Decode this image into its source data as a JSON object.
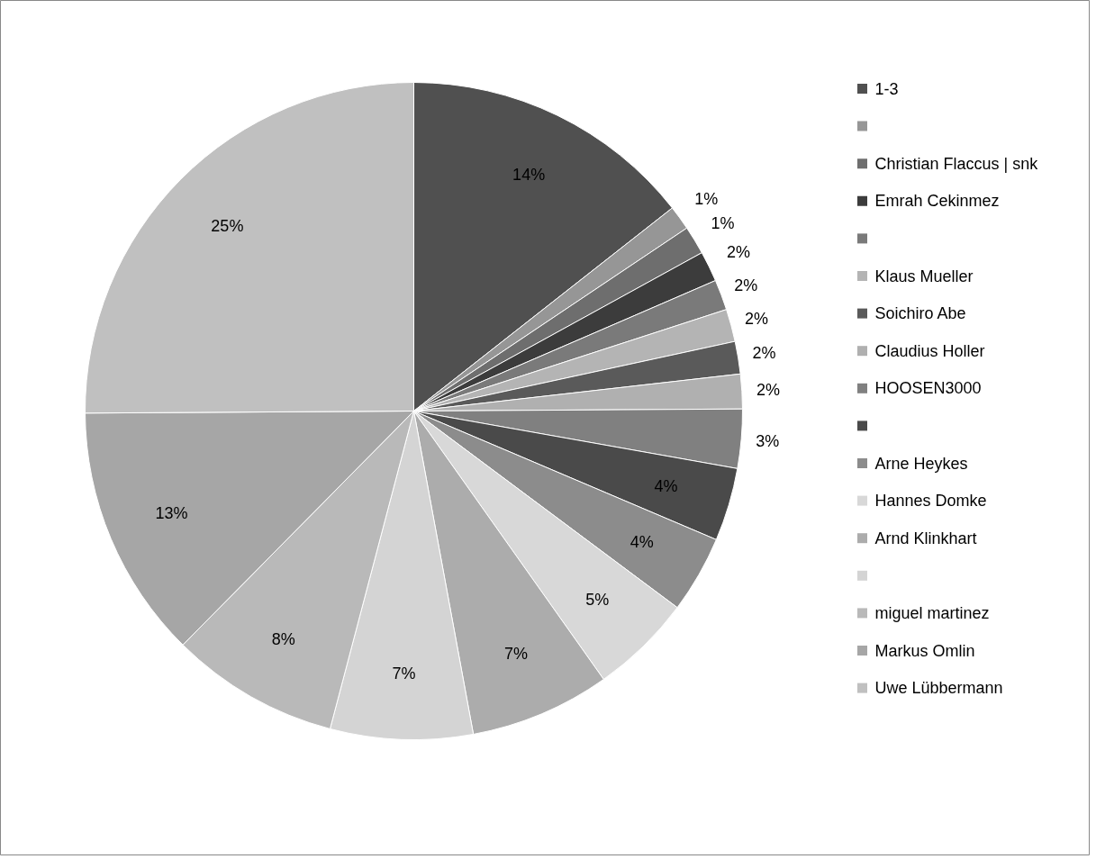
{
  "chart_data": {
    "type": "pie",
    "categories": [
      "1-3",
      null,
      "Christian Flaccus | snk",
      "Emrah Cekinmez",
      null,
      "Klaus Mueller",
      "Soichiro Abe",
      "Claudius Holler",
      "HOOSEN3000",
      null,
      "Arne Heykes",
      "Hannes Domke",
      "Arnd Klinkhart",
      null,
      "miguel martinez",
      "Markus Omlin",
      "Uwe Lübbermann"
    ],
    "values": [
      14.4,
      1.2,
      1.4,
      1.5,
      1.5,
      1.6,
      1.6,
      1.7,
      2.9,
      3.6,
      3.8,
      5.0,
      6.9,
      7.0,
      8.3,
      12.5,
      25.1
    ],
    "value_labels": [
      "14%",
      "1%",
      "1%",
      "2%",
      "2%",
      "2%",
      "2%",
      "2%",
      "3%",
      "4%",
      "4%",
      "5%",
      "7%",
      "7%",
      "8%",
      "13%",
      "25%"
    ],
    "colors": [
      "#505050",
      "#969696",
      "#6e6e6e",
      "#3c3c3c",
      "#7a7a7a",
      "#b4b4b4",
      "#5a5a5a",
      "#b0b0b0",
      "#808080",
      "#4a4a4a",
      "#8c8c8c",
      "#d8d8d8",
      "#acacac",
      "#d4d4d4",
      "#b9b9b9",
      "#a6a6a6",
      "#c0c0c0"
    ],
    "legend": "right"
  }
}
